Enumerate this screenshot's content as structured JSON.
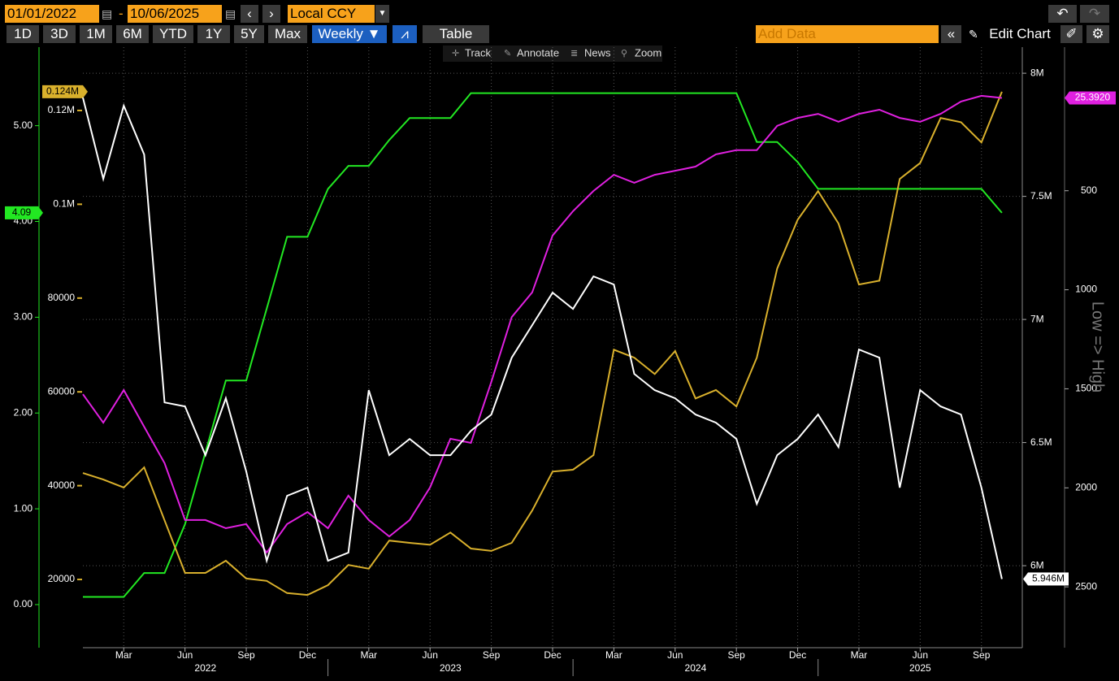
{
  "toolbar": {
    "start_date": "01/01/2022",
    "separator": "-",
    "end_date": "10/06/2025",
    "currency": "Local CCY",
    "ranges": [
      "1D",
      "3D",
      "1M",
      "6M",
      "YTD",
      "1Y",
      "5Y",
      "Max"
    ],
    "frequency": "Weekly ▼",
    "table": "Table",
    "add_data": "Add Data",
    "edit_chart": "Edit Chart",
    "tools": [
      "Track",
      "Annotate",
      "News",
      "Zoom"
    ]
  },
  "chart_data": {
    "type": "line",
    "x": [
      "2022-01",
      "2022-02",
      "2022-03",
      "2022-04",
      "2022-05",
      "2022-06",
      "2022-07",
      "2022-08",
      "2022-09",
      "2022-10",
      "2022-11",
      "2022-12",
      "2023-01",
      "2023-02",
      "2023-03",
      "2023-04",
      "2023-05",
      "2023-06",
      "2023-07",
      "2023-08",
      "2023-09",
      "2023-10",
      "2023-11",
      "2023-12",
      "2024-01",
      "2024-02",
      "2024-03",
      "2024-04",
      "2024-05",
      "2024-06",
      "2024-07",
      "2024-08",
      "2024-09",
      "2024-10",
      "2024-11",
      "2024-12",
      "2025-01",
      "2025-02",
      "2025-03",
      "2025-04",
      "2025-05",
      "2025-06",
      "2025-07",
      "2025-08",
      "2025-09",
      "2025-10"
    ],
    "xlim": [
      "2022-01",
      "2025-11"
    ],
    "xticks": [
      {
        "value": "2022-03",
        "label": "Mar"
      },
      {
        "value": "2022-06",
        "label": "Jun"
      },
      {
        "value": "2022-09",
        "label": "Sep"
      },
      {
        "value": "2022-12",
        "label": "Dec"
      },
      {
        "value": "2023-03",
        "label": "Mar"
      },
      {
        "value": "2023-06",
        "label": "Jun"
      },
      {
        "value": "2023-09",
        "label": "Sep"
      },
      {
        "value": "2023-12",
        "label": "Dec"
      },
      {
        "value": "2024-03",
        "label": "Mar"
      },
      {
        "value": "2024-06",
        "label": "Jun"
      },
      {
        "value": "2024-09",
        "label": "Sep"
      },
      {
        "value": "2024-12",
        "label": "Dec"
      },
      {
        "value": "2025-03",
        "label": "Mar"
      },
      {
        "value": "2025-06",
        "label": "Jun"
      },
      {
        "value": "2025-09",
        "label": "Sep"
      }
    ],
    "x_years": [
      "2022",
      "2023",
      "2024",
      "2025"
    ],
    "grid": true,
    "ylim": [
      -0.45,
      5.82
    ],
    "yticks": [
      {
        "value": 0,
        "label": "0.00"
      },
      {
        "value": 1,
        "label": "1.00"
      },
      {
        "value": 2,
        "label": "2.00"
      },
      {
        "value": 3,
        "label": "3.00"
      },
      {
        "value": 4,
        "label": "4.00"
      },
      {
        "value": 5,
        "label": "5.00"
      }
    ],
    "y2lim": [
      5455,
      133506
    ],
    "y2ticks": [
      20000,
      40000,
      60000,
      80000,
      {
        "value": 100000,
        "label": "0.1M"
      },
      {
        "value": 120000,
        "label": "0.12M"
      }
    ],
    "y3lim": [
      5667000,
      8106000
    ],
    "y3ticks": [
      {
        "value": 6000000,
        "label": "6M"
      },
      {
        "value": 6500000,
        "label": "6.5M"
      },
      {
        "value": 7000000,
        "label": "7M"
      },
      {
        "value": 7500000,
        "label": "7.5M"
      },
      {
        "value": 8000000,
        "label": "8M"
      }
    ],
    "y4lim": [
      2807,
      -225
    ],
    "y4ticks": [
      500,
      1000,
      1500,
      2000,
      2500
    ],
    "y4label": "Low => High",
    "y5lim": [
      8,
      27
    ],
    "series": [
      {
        "color": "#22e822",
        "axis": "y",
        "last_label": "4.09",
        "values": [
          0.08,
          0.08,
          0.08,
          0.33,
          0.33,
          0.84,
          1.59,
          2.34,
          2.34,
          3.09,
          3.84,
          3.84,
          4.34,
          4.58,
          4.58,
          4.85,
          5.08,
          5.08,
          5.08,
          5.34,
          5.34,
          5.34,
          5.34,
          5.34,
          5.34,
          5.34,
          5.34,
          5.34,
          5.34,
          5.34,
          5.34,
          5.34,
          5.34,
          4.83,
          4.83,
          4.62,
          4.34,
          4.34,
          4.34,
          4.34,
          4.34,
          4.34,
          4.34,
          4.34,
          4.34,
          4.09
        ]
      },
      {
        "color": "#d9b02c",
        "axis": "y2",
        "last_label": "0.124M",
        "values": [
          42700,
          41300,
          39600,
          43900,
          32600,
          21400,
          21400,
          24000,
          20200,
          19700,
          17100,
          16700,
          18800,
          23100,
          22300,
          28300,
          27800,
          27400,
          30000,
          26600,
          26100,
          27800,
          34700,
          43000,
          43400,
          46500,
          69000,
          67300,
          63800,
          68700,
          58600,
          60400,
          56900,
          67300,
          86300,
          96700,
          102800,
          95900,
          82900,
          83700,
          105400,
          108800,
          118400,
          117500,
          113200,
          124000
        ]
      },
      {
        "color": "#e020e0",
        "axis": "y5",
        "last_label": "25.3920",
        "values": [
          16.02,
          15.12,
          16.15,
          14.99,
          13.84,
          12.04,
          12.04,
          11.78,
          11.91,
          11.01,
          11.91,
          12.29,
          11.78,
          12.81,
          12.04,
          11.52,
          12.04,
          13.07,
          14.61,
          14.48,
          16.41,
          18.46,
          19.24,
          21.04,
          21.81,
          22.45,
          22.96,
          22.71,
          22.96,
          23.09,
          23.22,
          23.61,
          23.74,
          23.74,
          24.51,
          24.76,
          24.89,
          24.64,
          24.89,
          25.02,
          24.76,
          24.64,
          24.89,
          25.28,
          25.46,
          25.392
        ]
      },
      {
        "color": "#ffffff",
        "axis": "y3",
        "last_label": "5.946M",
        "values": [
          7901000,
          7571000,
          7868000,
          7670000,
          6663000,
          6647000,
          6449000,
          6680000,
          6383000,
          6020000,
          6284000,
          6317000,
          6020000,
          6053000,
          6713000,
          6449000,
          6515000,
          6449000,
          6449000,
          6548000,
          6614000,
          6845000,
          6977000,
          7109000,
          7043000,
          7175000,
          7142000,
          6779000,
          6713000,
          6680000,
          6614000,
          6581000,
          6515000,
          6251000,
          6449000,
          6515000,
          6614000,
          6482000,
          6878000,
          6845000,
          6317000,
          6713000,
          6647000,
          6614000,
          6317000,
          5946000
        ]
      }
    ]
  }
}
